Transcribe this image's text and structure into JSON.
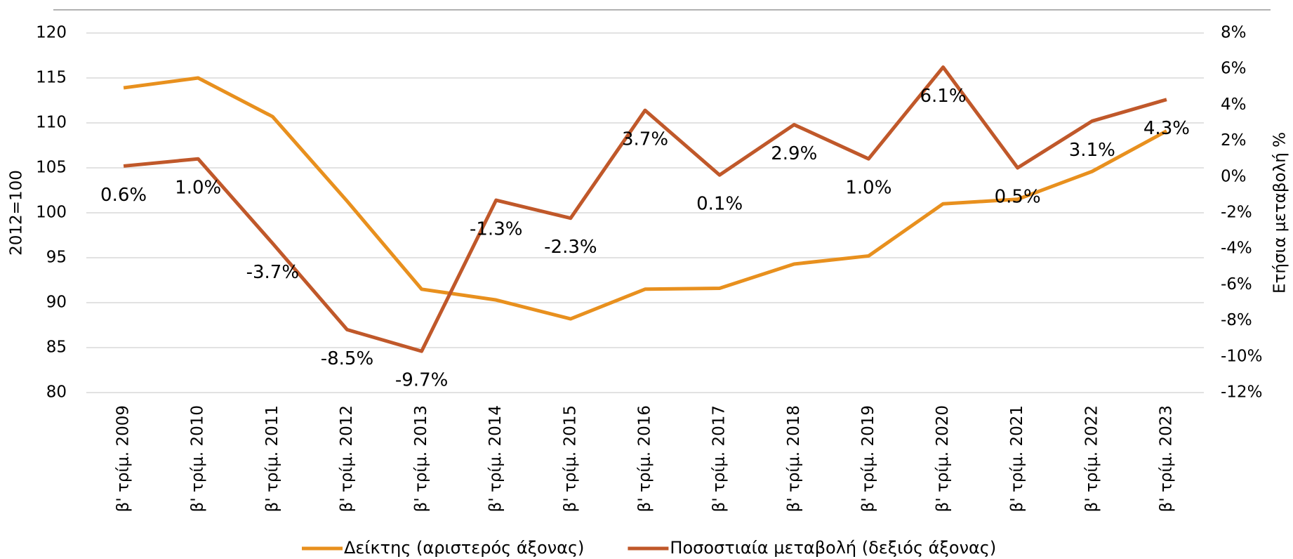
{
  "chart_data": {
    "type": "line",
    "categories": [
      "β' τρίμ. 2009",
      "β' τρίμ. 2010",
      "β' τρίμ. 2011",
      "β' τρίμ. 2012",
      "β' τρίμ. 2013",
      "β' τρίμ. 2014",
      "β' τρίμ. 2015",
      "β' τρίμ. 2016",
      "β' τρίμ. 2017",
      "β' τρίμ. 2018",
      "β' τρίμ. 2019",
      "β' τρίμ. 2020",
      "β' τρίμ. 2021",
      "β' τρίμ. 2022",
      "β' τρίμ. 2023"
    ],
    "series": [
      {
        "name": "Δείκτης (αριστερός άξονας)",
        "color": "#e8901e",
        "axis": "y",
        "values": [
          113.9,
          115.0,
          110.7,
          101.3,
          91.5,
          90.3,
          88.2,
          91.5,
          91.6,
          94.3,
          95.2,
          101.0,
          101.5,
          104.6,
          109.1
        ]
      },
      {
        "name": "Ποσοστιαία μεταβολή (δεξιός άξονας)",
        "color": "#c0582a",
        "axis": "y2",
        "values": [
          0.6,
          1.0,
          -3.7,
          -8.5,
          -9.7,
          -1.3,
          -2.3,
          3.7,
          0.1,
          2.9,
          1.0,
          6.1,
          0.5,
          3.1,
          4.3
        ],
        "value_labels": [
          "0.6%",
          "1.0%",
          "-3.7%",
          "-8.5%",
          "-9.7%",
          "-1.3%",
          "-2.3%",
          "3.7%",
          "0.1%",
          "2.9%",
          "1.0%",
          "6.1%",
          "0.5%",
          "3.1%",
          "4.3%"
        ]
      }
    ],
    "ylabel": "2012=100",
    "y2label": "Ετήσια μεταβολή %",
    "ylim": [
      80,
      120
    ],
    "yticks": [
      80,
      85,
      90,
      95,
      100,
      105,
      110,
      115,
      120
    ],
    "y2lim": [
      -12,
      8
    ],
    "y2ticks": [
      {
        "value": -12,
        "label": "-12%"
      },
      {
        "value": -10,
        "label": "-10%"
      },
      {
        "value": -8,
        "label": "-8%"
      },
      {
        "value": -6,
        "label": "-6%"
      },
      {
        "value": -4,
        "label": "-4%"
      },
      {
        "value": -2,
        "label": "-2%"
      },
      {
        "value": 0,
        "label": "0%"
      },
      {
        "value": 2,
        "label": "2%"
      },
      {
        "value": 4,
        "label": "4%"
      },
      {
        "value": 6,
        "label": "6%"
      },
      {
        "value": 8,
        "label": "8%"
      }
    ],
    "grid": true,
    "legend": "bottom"
  }
}
